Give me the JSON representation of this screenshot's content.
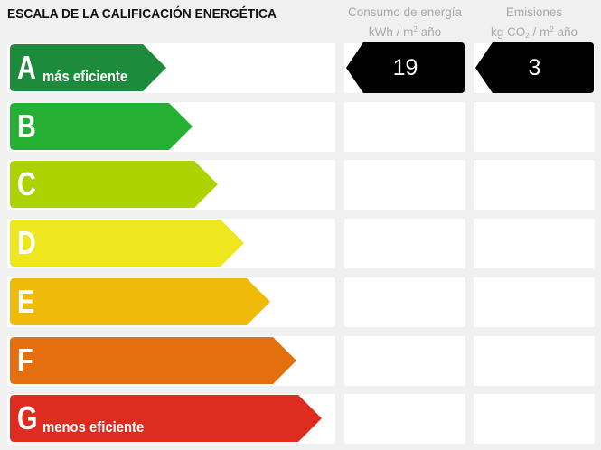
{
  "title": "ESCALA DE LA CALIFICACIÓN ENERGÉTICA",
  "columns": {
    "consumo": {
      "line1": "Consumo de energía",
      "line2_pre": "kWh / m",
      "line2_sup": "2",
      "line2_post": " año"
    },
    "emisiones": {
      "line1": "Emisiones",
      "line2_pre": "kg CO",
      "line2_sub": "2",
      "line2_mid": " / m",
      "line2_sup": "2",
      "line2_post": " año"
    }
  },
  "ratings": [
    {
      "letter": "A",
      "label": "más eficiente",
      "color": "#1d8a3c"
    },
    {
      "letter": "B",
      "label": "",
      "color": "#25b034"
    },
    {
      "letter": "C",
      "label": "",
      "color": "#acd200"
    },
    {
      "letter": "D",
      "label": "",
      "color": "#eee61e"
    },
    {
      "letter": "E",
      "label": "",
      "color": "#f0ba0a"
    },
    {
      "letter": "F",
      "label": "",
      "color": "#e36f0f"
    },
    {
      "letter": "G",
      "label": "menos eficiente",
      "color": "#de2d20"
    }
  ],
  "current": {
    "rating": "A",
    "consumo_value": "19",
    "emisiones_value": "3",
    "badge_color": "#000000"
  }
}
